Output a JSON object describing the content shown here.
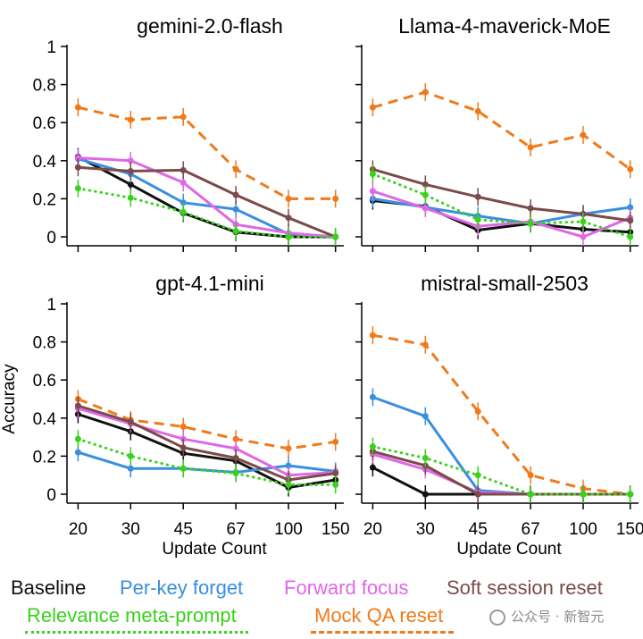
{
  "chart_data": {
    "type": "line",
    "x_ticks": [
      "20",
      "30",
      "45",
      "67",
      "100",
      "150"
    ],
    "xlabel": "Update Count",
    "ylabel": "Accuracy",
    "y_ticks": [
      "0",
      "0.2",
      "0.4",
      "0.6",
      "0.8",
      "1"
    ],
    "ylim": [
      0,
      1
    ],
    "grid": false,
    "legend": [
      {
        "name": "Baseline",
        "color": "#111111",
        "dash": "solid"
      },
      {
        "name": "Per-key forget",
        "color": "#3a8fde",
        "dash": "solid"
      },
      {
        "name": "Forward focus",
        "color": "#e067e6",
        "dash": "solid"
      },
      {
        "name": "Soft session reset",
        "color": "#7b4a4a",
        "dash": "solid"
      },
      {
        "name": "Relevance meta-prompt",
        "color": "#39d21a",
        "dash": "dotted"
      },
      {
        "name": "Mock QA reset",
        "color": "#f07a1a",
        "dash": "dashed"
      }
    ],
    "panels": [
      {
        "title": "gemini-2.0-flash",
        "series": [
          {
            "name": "Mock QA reset",
            "values": [
              0.68,
              0.615,
              0.63,
              0.355,
              0.2,
              0.2
            ]
          },
          {
            "name": "Baseline",
            "values": [
              0.42,
              0.275,
              0.125,
              0.025,
              0.0,
              0.0
            ]
          },
          {
            "name": "Per-key forget",
            "values": [
              0.41,
              0.33,
              0.18,
              0.145,
              0.015,
              0.0
            ]
          },
          {
            "name": "Forward focus",
            "values": [
              0.415,
              0.4,
              0.285,
              0.065,
              0.02,
              0.0
            ]
          },
          {
            "name": "Soft session reset",
            "values": [
              0.365,
              0.345,
              0.35,
              0.22,
              0.1,
              0.0
            ]
          },
          {
            "name": "Relevance meta-prompt",
            "values": [
              0.255,
              0.205,
              0.13,
              0.03,
              0.0,
              0.0
            ]
          }
        ]
      },
      {
        "title": "Llama-4-maverick-MoE",
        "series": [
          {
            "name": "Mock QA reset",
            "values": [
              0.68,
              0.76,
              0.66,
              0.47,
              0.535,
              0.355
            ]
          },
          {
            "name": "Baseline",
            "values": [
              0.19,
              0.16,
              0.035,
              0.07,
              0.04,
              0.025
            ]
          },
          {
            "name": "Per-key forget",
            "values": [
              0.2,
              0.155,
              0.11,
              0.07,
              0.12,
              0.155
            ]
          },
          {
            "name": "Forward focus",
            "values": [
              0.24,
              0.15,
              0.055,
              0.08,
              0.0,
              0.1
            ]
          },
          {
            "name": "Soft session reset",
            "values": [
              0.355,
              0.275,
              0.21,
              0.15,
              0.12,
              0.085
            ]
          },
          {
            "name": "Relevance meta-prompt",
            "values": [
              0.33,
              0.22,
              0.09,
              0.07,
              0.08,
              0.0
            ]
          }
        ]
      },
      {
        "title": "gpt-4.1-mini",
        "series": [
          {
            "name": "Mock QA reset",
            "values": [
              0.5,
              0.39,
              0.355,
              0.29,
              0.24,
              0.275
            ]
          },
          {
            "name": "Baseline",
            "values": [
              0.42,
              0.33,
              0.215,
              0.175,
              0.035,
              0.075
            ]
          },
          {
            "name": "Per-key forget",
            "values": [
              0.22,
              0.135,
              0.135,
              0.115,
              0.15,
              0.12
            ]
          },
          {
            "name": "Forward focus",
            "values": [
              0.45,
              0.37,
              0.29,
              0.24,
              0.1,
              0.115
            ]
          },
          {
            "name": "Soft session reset",
            "values": [
              0.465,
              0.38,
              0.245,
              0.19,
              0.075,
              0.11
            ]
          },
          {
            "name": "Relevance meta-prompt",
            "values": [
              0.29,
              0.2,
              0.135,
              0.11,
              0.05,
              0.05
            ]
          }
        ]
      },
      {
        "title": "mistral-small-2503",
        "series": [
          {
            "name": "Mock QA reset",
            "values": [
              0.835,
              0.785,
              0.435,
              0.1,
              0.03,
              0.0
            ]
          },
          {
            "name": "Baseline",
            "values": [
              0.14,
              0.0,
              0.0,
              0.0,
              0.0,
              0.0
            ]
          },
          {
            "name": "Per-key forget",
            "values": [
              0.51,
              0.41,
              0.02,
              0.0,
              0.0,
              0.0
            ]
          },
          {
            "name": "Forward focus",
            "values": [
              0.21,
              0.13,
              0.01,
              0.0,
              0.0,
              0.0
            ]
          },
          {
            "name": "Soft session reset",
            "values": [
              0.225,
              0.15,
              0.0,
              0.0,
              0.0,
              0.0
            ]
          },
          {
            "name": "Relevance meta-prompt",
            "values": [
              0.25,
              0.19,
              0.1,
              0.0,
              0.0,
              0.0
            ]
          }
        ]
      }
    ]
  },
  "watermark": {
    "text": "公众号 · 新智元",
    "icon": "wechat-logo-icon"
  }
}
